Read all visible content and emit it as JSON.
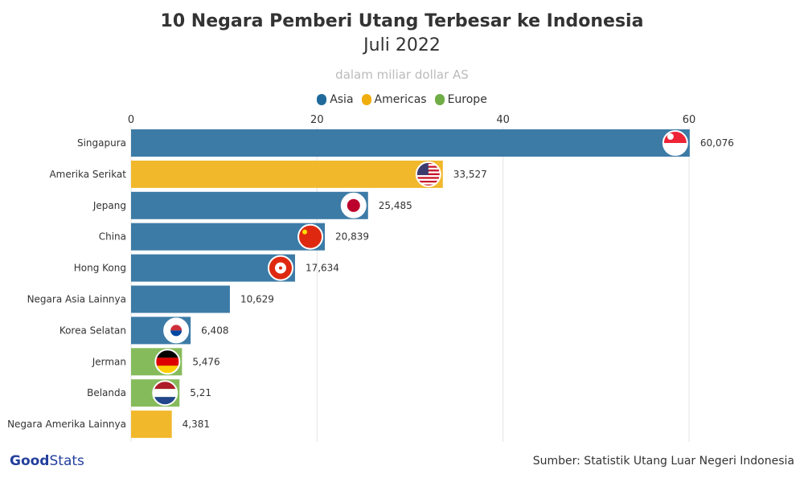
{
  "title": "10 Negara Pemberi Utang Terbesar ke Indonesia",
  "subtitle": "Juli 2022",
  "unit": "dalam miliar dollar AS",
  "source": "Sumber: Statistik Utang Luar Negeri Indonesia",
  "logo": {
    "bold": "Good",
    "light": "Stats"
  },
  "colors": {
    "Asia": "#3c7ba6",
    "Americas": "#f1b82c",
    "Europe": "#86bb5c"
  },
  "legend": [
    {
      "label": "Asia",
      "color": "#1f6a9a"
    },
    {
      "label": "Americas",
      "color": "#f0ae0e"
    },
    {
      "label": "Europe",
      "color": "#70ad47"
    }
  ],
  "chart_data": {
    "type": "bar",
    "orientation": "horizontal",
    "xlim": [
      0,
      60
    ],
    "xticks": [
      "0",
      "20",
      "40",
      "60"
    ],
    "grid": true,
    "categories": [
      "Singapura",
      "Amerika Serikat",
      "Jepang",
      "China",
      "Hong Kong",
      "Negara Asia Lainnya",
      "Korea Selatan",
      "Jerman",
      "Belanda",
      "Negara Amerika Lainnya"
    ],
    "values": [
      60.076,
      33.527,
      25.485,
      20.839,
      17.634,
      10.629,
      6.408,
      5.476,
      5.21,
      4.381
    ],
    "labels": [
      "60,076",
      "33,527",
      "25,485",
      "20,839",
      "17,634",
      "10,629",
      "6,408",
      "5,476",
      "5,21",
      "4,381"
    ],
    "regions": [
      "Asia",
      "Americas",
      "Asia",
      "Asia",
      "Asia",
      "Asia",
      "Asia",
      "Europe",
      "Europe",
      "Americas"
    ],
    "flags": [
      "singapore-flag",
      "usa-flag",
      "japan-flag",
      "china-flag",
      "hong-kong-flag",
      "",
      "south-korea-flag",
      "germany-flag",
      "netherlands-flag",
      ""
    ]
  }
}
